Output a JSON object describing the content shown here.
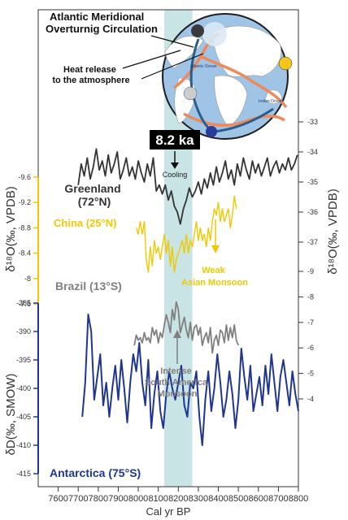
{
  "chart_data": {
    "type": "line",
    "xlabel": "Cal yr BP",
    "xlim": [
      7500,
      8800
    ],
    "x_ticks": [
      7600,
      7700,
      7800,
      7900,
      8000,
      8100,
      8200,
      8300,
      8400,
      8500,
      8600,
      8700,
      8800
    ],
    "event_band": [
      8130,
      8270
    ],
    "event_label": "8.2 ka",
    "annotations": {
      "cooling": "Cooling",
      "asian_monsoon": [
        "Weak",
        "Asian Monsoon"
      ],
      "sa_monsoon": [
        "Intense",
        "South America",
        "Monsoon"
      ],
      "amoc": [
        "Atlantic Meridional",
        "Overturnig Circulation"
      ],
      "heat": [
        "Heat release",
        "to the atmosphere"
      ]
    },
    "left_axis_label": "δ¹⁸O(‰, VPDB)",
    "right_axis_label": "δ¹⁸O(‰, VPDB)",
    "antarctica_axis_label": "δD(‰, SMOW)",
    "right_ticks_greenland": [
      "-33",
      "-34",
      "-35",
      "-36",
      "-37"
    ],
    "right_ticks_brazil": [
      "-9",
      "-8",
      "-7",
      "-6",
      "-5",
      "-4"
    ],
    "china_ticks": [
      "-9.6",
      "-9.2",
      "-8.8",
      "-8.4",
      "-8",
      "-7.6"
    ],
    "antarctica_ticks": [
      "-385",
      "-390",
      "-395",
      "-400",
      "-405",
      "-410",
      "-415"
    ],
    "colors": {
      "greenland": "#333333",
      "china": "#f0c800",
      "brazil": "#808080",
      "antarctica": "#1f3590",
      "band": "#c8e4e4",
      "china_axis": "#f0c800",
      "antarctica_axis": "#1f3590"
    },
    "series": [
      {
        "name": "Greenland\n(72°N)",
        "x": [
          7700,
          7715,
          7730,
          7745,
          7760,
          7775,
          7790,
          7805,
          7820,
          7835,
          7850,
          7865,
          7880,
          7895,
          7910,
          7925,
          7940,
          7955,
          7970,
          7985,
          8000,
          8015,
          8030,
          8045,
          8060,
          8075,
          8090,
          8105,
          8120,
          8135,
          8150,
          8165,
          8180,
          8195,
          8210,
          8225,
          8240,
          8255,
          8270,
          8285,
          8300,
          8315,
          8330,
          8345,
          8360,
          8375,
          8390,
          8405,
          8420,
          8435,
          8450,
          8465,
          8480,
          8495,
          8510,
          8525,
          8540,
          8555,
          8570,
          8585,
          8600,
          8615,
          8630,
          8645,
          8660,
          8675,
          8690,
          8705,
          8720,
          8735,
          8750,
          8765,
          8780,
          8795
        ],
        "values": [
          -35.1,
          -34.4,
          -34.8,
          -34.2,
          -34.9,
          -34.5,
          -33.9,
          -34.6,
          -34.3,
          -34.8,
          -34.1,
          -34.7,
          -34.4,
          -34.0,
          -34.9,
          -34.6,
          -34.2,
          -34.8,
          -34.5,
          -34.9,
          -34.3,
          -34.7,
          -35.0,
          -34.4,
          -34.8,
          -34.2,
          -35.3,
          -35.1,
          -35.4,
          -35.1,
          -35.6,
          -35.3,
          -35.8,
          -36.0,
          -36.4,
          -35.9,
          -35.6,
          -35.2,
          -35.5,
          -35.3,
          -35.0,
          -35.4,
          -34.9,
          -35.2,
          -34.7,
          -35.1,
          -34.5,
          -35.0,
          -34.7,
          -34.3,
          -34.9,
          -34.6,
          -35.1,
          -34.4,
          -34.8,
          -34.2,
          -34.6,
          -34.9,
          -34.3,
          -34.7,
          -34.4,
          -34.8,
          -34.5,
          -34.2,
          -34.8,
          -34.5,
          -34.3,
          -34.7,
          -34.4,
          -34.6,
          -34.2,
          -34.6,
          -34.4,
          -34.1
        ]
      },
      {
        "name": "China (25°N)",
        "x": [
          7990,
          8000,
          8010,
          8020,
          8030,
          8040,
          8050,
          8060,
          8070,
          8080,
          8090,
          8100,
          8110,
          8120,
          8130,
          8140,
          8150,
          8160,
          8170,
          8180,
          8190,
          8200,
          8210,
          8220,
          8230,
          8240,
          8250,
          8260,
          8270,
          8280,
          8290,
          8300,
          8310,
          8320,
          8330,
          8340,
          8350,
          8360,
          8370,
          8380,
          8390,
          8400,
          8410,
          8420,
          8430,
          8440,
          8450,
          8460,
          8470,
          8480,
          8490
        ],
        "values": [
          -8.8,
          -8.7,
          -8.9,
          -8.7,
          -8.9,
          -8.3,
          -8.1,
          -8.5,
          -8.2,
          -8.6,
          -8.4,
          -8.5,
          -8.3,
          -8.5,
          -8.7,
          -8.4,
          -8.6,
          -8.2,
          -8.5,
          -8.1,
          -8.3,
          -8.4,
          -8.5,
          -8.6,
          -8.4,
          -8.7,
          -8.4,
          -8.6,
          -8.5,
          -8.7,
          -8.9,
          -8.6,
          -8.8,
          -8.6,
          -8.7,
          -8.5,
          -8.8,
          -8.6,
          -8.9,
          -9.1,
          -9.0,
          -9.2,
          -8.9,
          -9.1,
          -8.9,
          -9.0,
          -9.1,
          -8.8,
          -9.0,
          -9.3,
          -9.1
        ]
      },
      {
        "name": "Brazil (13°S)",
        "x": [
          7980,
          7990,
          8000,
          8010,
          8020,
          8030,
          8040,
          8050,
          8060,
          8070,
          8080,
          8090,
          8100,
          8110,
          8120,
          8130,
          8140,
          8150,
          8160,
          8170,
          8180,
          8190,
          8200,
          8210,
          8220,
          8230,
          8240,
          8250,
          8260,
          8270,
          8280,
          8290,
          8300,
          8310,
          8320,
          8330,
          8340,
          8350,
          8360,
          8370,
          8380,
          8390,
          8400,
          8410,
          8420,
          8430,
          8440,
          8450,
          8460,
          8470,
          8480,
          8490,
          8500
        ],
        "values": [
          -6.1,
          -6.5,
          -6.3,
          -6.4,
          -6.2,
          -6.6,
          -6.3,
          -6.4,
          -6.2,
          -6.8,
          -6.5,
          -6.7,
          -6.2,
          -6.6,
          -6.4,
          -6.9,
          -7.3,
          -7.0,
          -6.6,
          -7.5,
          -7.1,
          -7.8,
          -7.5,
          -6.6,
          -6.9,
          -7.2,
          -6.7,
          -6.4,
          -7.0,
          -6.3,
          -6.8,
          -6.9,
          -6.5,
          -6.8,
          -6.1,
          -6.4,
          -6.6,
          -6.2,
          -6.8,
          -5.8,
          -6.3,
          -6.5,
          -6.1,
          -6.7,
          -6.6,
          -6.2,
          -6.9,
          -6.3,
          -6.8,
          -6.4,
          -6.9,
          -6.3,
          -6.1
        ]
      },
      {
        "name": "Antarctica (75°S)",
        "x": [
          7720,
          7735,
          7750,
          7765,
          7780,
          7795,
          7810,
          7825,
          7840,
          7855,
          7870,
          7885,
          7900,
          7915,
          7930,
          7945,
          7960,
          7975,
          7990,
          8005,
          8020,
          8035,
          8050,
          8065,
          8080,
          8095,
          8110,
          8125,
          8140,
          8155,
          8170,
          8185,
          8200,
          8215,
          8230,
          8245,
          8260,
          8275,
          8290,
          8305,
          8320,
          8335,
          8350,
          8365,
          8380,
          8395,
          8410,
          8425,
          8440,
          8455,
          8470,
          8485,
          8500,
          8515,
          8530,
          8545,
          8560,
          8575,
          8590,
          8605,
          8620,
          8635,
          8650,
          8665,
          8680,
          8695,
          8710,
          8725,
          8740,
          8755,
          8770,
          8785,
          8800
        ],
        "values": [
          -405,
          -399,
          -387,
          -390,
          -402,
          -398,
          -394,
          -403,
          -399,
          -405,
          -400,
          -396,
          -402,
          -395,
          -400,
          -406,
          -399,
          -394,
          -397,
          -392,
          -399,
          -403,
          -395,
          -407,
          -401,
          -397,
          -404,
          -407,
          -401,
          -397,
          -400,
          -402,
          -399,
          -396,
          -403,
          -405,
          -399,
          -400,
          -397,
          -405,
          -410,
          -402,
          -397,
          -404,
          -400,
          -394,
          -399,
          -405,
          -402,
          -397,
          -401,
          -407,
          -402,
          -393,
          -398,
          -402,
          -396,
          -404,
          -401,
          -398,
          -403,
          -396,
          -401,
          -394,
          -399,
          -404,
          -398,
          -395,
          -399,
          -403,
          -397,
          -401,
          -404
        ]
      }
    ]
  },
  "labels": {
    "greenland_line1": "Greenland",
    "greenland_line2": "(72°N)",
    "china": "China (25°N)",
    "brazil": "Brazil (13°S)",
    "antarctica": "Antarctica (75°S)"
  },
  "map_labels": {
    "atlantic": "Atlantic Ocean",
    "indian": "Indian Ocean"
  }
}
